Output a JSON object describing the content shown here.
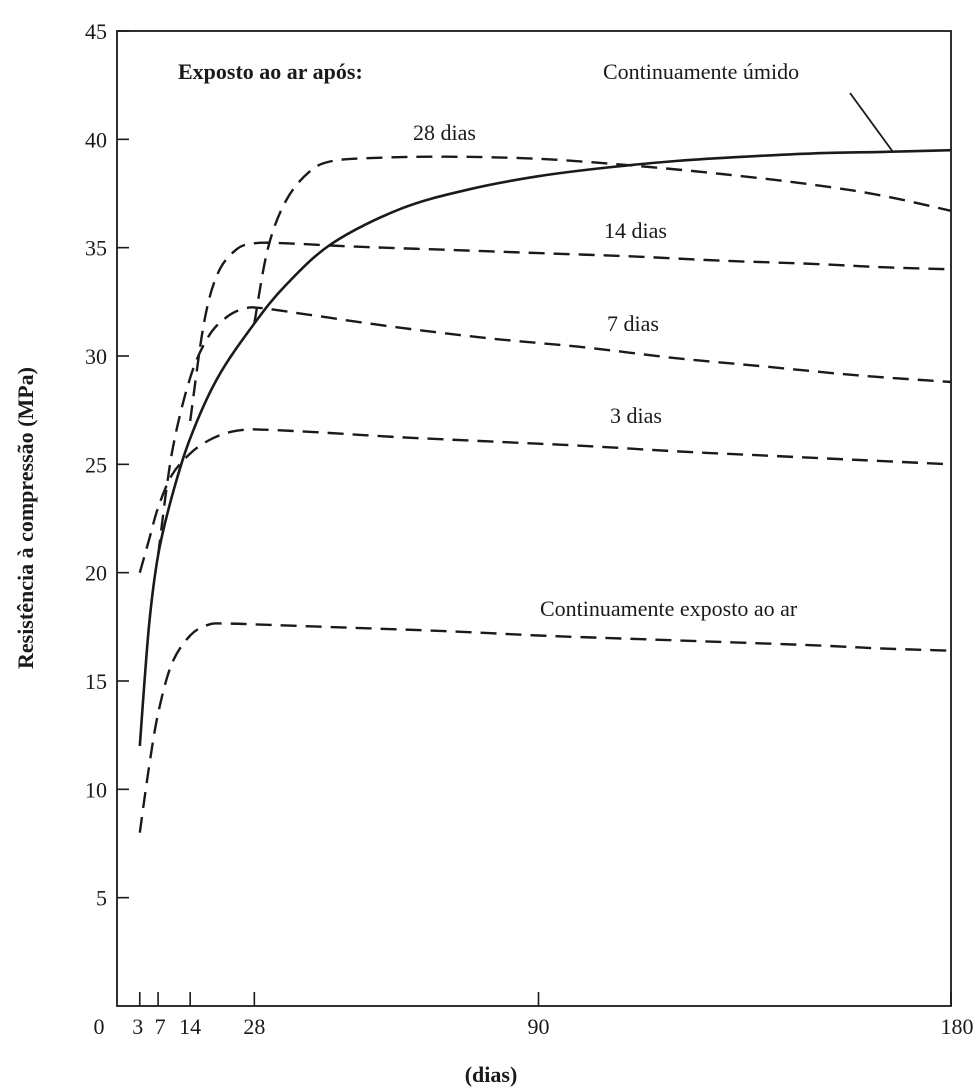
{
  "chart_data": {
    "type": "line",
    "title": "",
    "xlabel": "(dias)",
    "ylabel": "Resistência à compressão (MPa)",
    "xlim": [
      0,
      180
    ],
    "ylim": [
      0,
      45
    ],
    "x_ticks": [
      0,
      3,
      7,
      14,
      28,
      90,
      180
    ],
    "x_tick_labels": [
      "0",
      "3",
      "7",
      "14",
      "28",
      "90",
      "180"
    ],
    "y_ticks": [
      5,
      10,
      15,
      20,
      25,
      30,
      35,
      40,
      45
    ],
    "y_tick_labels": [
      "5",
      "10",
      "15",
      "20",
      "25",
      "30",
      "35",
      "40",
      "45"
    ],
    "grid": false,
    "header_annotation": "Exposto ao ar após:",
    "series": [
      {
        "name": "Continuamente úmido",
        "style": "solid",
        "x": [
          3,
          5,
          7,
          10,
          14,
          20,
          28,
          35,
          45,
          60,
          75,
          90,
          105,
          120,
          135,
          150,
          165,
          180
        ],
        "y": [
          12,
          17.5,
          20.8,
          23.5,
          26.2,
          29,
          31.5,
          33.3,
          35.2,
          36.8,
          37.7,
          38.3,
          38.7,
          39.0,
          39.2,
          39.35,
          39.42,
          39.5
        ]
      },
      {
        "name": "28 dias",
        "style": "dashed",
        "x": [
          28,
          31,
          35,
          40,
          45,
          55,
          70,
          90,
          110,
          130,
          150,
          165,
          180
        ],
        "y": [
          31.5,
          35,
          37.2,
          38.5,
          39,
          39.15,
          39.2,
          39.1,
          38.8,
          38.4,
          37.9,
          37.4,
          36.7
        ]
      },
      {
        "name": "14 dias",
        "style": "dashed",
        "x": [
          14,
          17,
          20,
          24,
          28,
          35,
          50,
          70,
          90,
          110,
          130,
          150,
          165,
          180
        ],
        "y": [
          27,
          31.5,
          33.8,
          34.9,
          35.2,
          35.2,
          35.05,
          34.9,
          34.75,
          34.6,
          34.4,
          34.25,
          34.1,
          34.0
        ]
      },
      {
        "name": "7 dias",
        "style": "dashed",
        "x": [
          7,
          10,
          14,
          18,
          22,
          26,
          30,
          40,
          60,
          80,
          100,
          120,
          140,
          160,
          180
        ],
        "y": [
          20.8,
          25.5,
          29,
          30.9,
          31.8,
          32.2,
          32.2,
          31.9,
          31.3,
          30.8,
          30.4,
          29.9,
          29.5,
          29.1,
          28.8
        ]
      },
      {
        "name": "3 dias",
        "style": "dashed",
        "x": [
          3,
          5,
          7,
          10,
          14,
          18,
          22,
          26,
          30,
          40,
          60,
          80,
          100,
          120,
          140,
          160,
          180
        ],
        "y": [
          20,
          21.5,
          23,
          24.5,
          25.5,
          26.1,
          26.45,
          26.6,
          26.6,
          26.5,
          26.25,
          26.05,
          25.85,
          25.6,
          25.4,
          25.2,
          25.0
        ]
      },
      {
        "name": "Continuamente exposto ao ar",
        "style": "dashed",
        "x": [
          3,
          5,
          7,
          10,
          14,
          18,
          22,
          30,
          50,
          70,
          90,
          110,
          130,
          150,
          165,
          180
        ],
        "y": [
          8,
          11,
          13.5,
          15.8,
          17.1,
          17.6,
          17.65,
          17.6,
          17.45,
          17.3,
          17.1,
          16.95,
          16.8,
          16.65,
          16.5,
          16.4
        ]
      }
    ]
  }
}
